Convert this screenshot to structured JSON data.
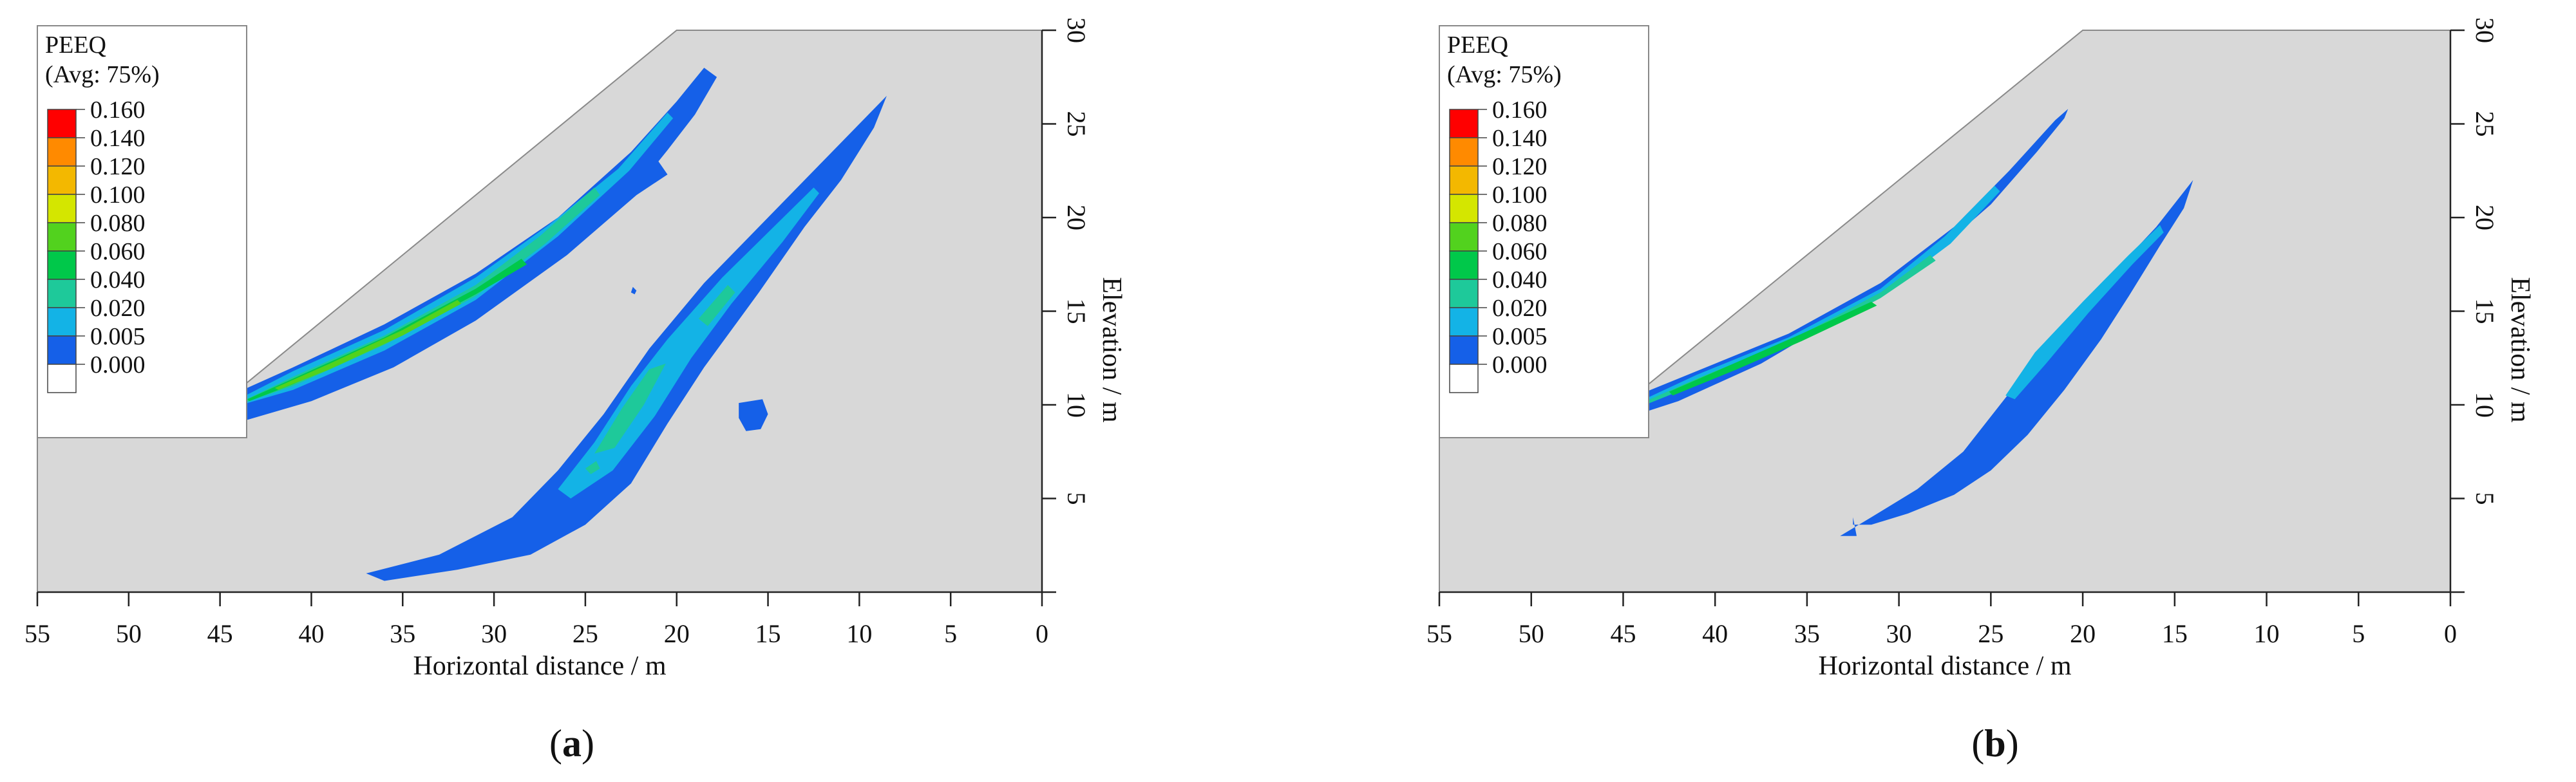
{
  "chart_data": [
    {
      "type": "heatmap",
      "panel_label": "(a)",
      "panel_letter": "a",
      "legend": {
        "title_line1": "PEEQ",
        "title_line2": "(Avg: 75%)",
        "levels": [
          0.16,
          0.14,
          0.12,
          0.1,
          0.08,
          0.06,
          0.04,
          0.02,
          0.005,
          0.0
        ],
        "level_labels": [
          "0.160",
          "0.140",
          "0.120",
          "0.100",
          "0.080",
          "0.060",
          "0.040",
          "0.020",
          "0.005",
          "0.000"
        ],
        "colors": [
          "#ff0000",
          "#ff8a00",
          "#f3b800",
          "#d4e600",
          "#52d21e",
          "#00c84a",
          "#1ec99a",
          "#13b3e6",
          "#1560e8",
          "#ffffff"
        ]
      },
      "xlabel": "Horizontal distance / m",
      "ylabel": "Elevation / m",
      "x_ticks": [
        "55",
        "50",
        "45",
        "40",
        "35",
        "30",
        "25",
        "20",
        "15",
        "10",
        "5",
        "0"
      ],
      "y_ticks": [
        "5",
        "10",
        "15",
        "20",
        "25",
        "30"
      ],
      "xlim": [
        55,
        0
      ],
      "ylim": [
        0,
        30
      ],
      "slope_outline": [
        [
          55,
          0
        ],
        [
          55,
          10
        ],
        [
          45,
          10
        ],
        [
          20,
          30
        ],
        [
          0,
          30
        ],
        [
          0,
          0
        ]
      ],
      "bands": [
        {
          "level": 0.005,
          "points": [
            [
              45.5,
              9.9
            ],
            [
              44.2,
              10.6
            ],
            [
              41,
              12.0
            ],
            [
              36,
              14.3
            ],
            [
              31,
              17.0
            ],
            [
              26.5,
              20.0
            ],
            [
              22.5,
              23.5
            ],
            [
              20,
              26.2
            ],
            [
              18.5,
              28
            ],
            [
              17.8,
              27.5
            ],
            [
              19.0,
              25.5
            ],
            [
              20.5,
              23.6
            ],
            [
              21.0,
              23.0
            ],
            [
              20.5,
              22.3
            ],
            [
              22.2,
              21.2
            ],
            [
              26,
              18.0
            ],
            [
              31,
              14.5
            ],
            [
              35.5,
              12.0
            ],
            [
              40,
              10.2
            ],
            [
              43.5,
              9.2
            ],
            [
              45,
              9.2
            ]
          ]
        },
        {
          "level": 0.02,
          "points": [
            [
              44.6,
              10.0
            ],
            [
              41,
              11.8
            ],
            [
              36,
              14.0
            ],
            [
              31,
              16.8
            ],
            [
              27,
              19.6
            ],
            [
              23.2,
              22.6
            ],
            [
              20.5,
              25.6
            ],
            [
              20.2,
              25.3
            ],
            [
              22.6,
              22.5
            ],
            [
              26.5,
              19.0
            ],
            [
              31,
              15.6
            ],
            [
              36,
              12.9
            ],
            [
              41,
              10.8
            ],
            [
              44.2,
              9.9
            ]
          ]
        },
        {
          "level": 0.04,
          "points": [
            [
              44.2,
              10.0
            ],
            [
              41,
              11.5
            ],
            [
              36,
              13.7
            ],
            [
              31,
              16.4
            ],
            [
              27.5,
              19.0
            ],
            [
              24.5,
              21.6
            ],
            [
              24.2,
              21.2
            ],
            [
              27.2,
              18.6
            ],
            [
              31,
              15.8
            ],
            [
              36,
              13.2
            ],
            [
              41,
              11.0
            ],
            [
              44.0,
              10.0
            ]
          ]
        },
        {
          "level": 0.06,
          "points": [
            [
              43.5,
              10.3
            ],
            [
              41,
              11.4
            ],
            [
              36,
              13.6
            ],
            [
              31,
              16.2
            ],
            [
              28.5,
              17.8
            ],
            [
              28.2,
              17.5
            ],
            [
              31,
              15.9
            ],
            [
              36,
              13.3
            ],
            [
              41,
              11.1
            ],
            [
              43.4,
              10.2
            ]
          ]
        },
        {
          "level": 0.08,
          "points": [
            [
              42.0,
              10.9
            ],
            [
              39,
              12.2
            ],
            [
              35,
              14.0
            ],
            [
              32,
              15.6
            ],
            [
              31.8,
              15.4
            ],
            [
              35,
              13.7
            ],
            [
              39,
              11.9
            ],
            [
              41.8,
              10.8
            ]
          ]
        },
        {
          "level": 0.005,
          "points": [
            [
              37,
              1.0
            ],
            [
              33,
              2.0
            ],
            [
              29,
              4.0
            ],
            [
              26.5,
              6.5
            ],
            [
              24,
              9.5
            ],
            [
              21.5,
              13.0
            ],
            [
              18.5,
              16.5
            ],
            [
              15,
              20.0
            ],
            [
              12,
              23.0
            ],
            [
              9.5,
              25.5
            ],
            [
              8.5,
              26.5
            ],
            [
              9.2,
              24.8
            ],
            [
              11.0,
              22.0
            ],
            [
              13.0,
              19.5
            ],
            [
              15.5,
              16.0
            ],
            [
              18.5,
              12.0
            ],
            [
              20.5,
              9.0
            ],
            [
              22.5,
              5.8
            ],
            [
              25.0,
              3.6
            ],
            [
              28.0,
              2.0
            ],
            [
              32,
              1.2
            ],
            [
              36,
              0.6
            ]
          ]
        },
        {
          "level": 0.02,
          "points": [
            [
              26.5,
              5.5
            ],
            [
              24.5,
              8.0
            ],
            [
              22.5,
              11.0
            ],
            [
              20.5,
              13.5
            ],
            [
              17.5,
              16.8
            ],
            [
              15.0,
              19.2
            ],
            [
              12.5,
              21.6
            ],
            [
              12.2,
              21.3
            ],
            [
              14.2,
              18.7
            ],
            [
              17.0,
              15.4
            ],
            [
              19.2,
              12.5
            ],
            [
              21.2,
              9.4
            ],
            [
              23.5,
              6.5
            ],
            [
              25.8,
              5.0
            ]
          ]
        },
        {
          "level": 0.04,
          "points": [
            [
              24.5,
              7.4
            ],
            [
              23.0,
              9.8
            ],
            [
              21.5,
              11.9
            ],
            [
              20.6,
              12.2
            ],
            [
              21.8,
              10.0
            ],
            [
              23.4,
              7.7
            ]
          ]
        },
        {
          "level": 0.04,
          "points": [
            [
              18.8,
              14.6
            ],
            [
              17.2,
              16.4
            ],
            [
              16.8,
              16.0
            ],
            [
              18.3,
              14.2
            ]
          ]
        },
        {
          "level": 0.04,
          "points": [
            [
              25.0,
              6.6
            ],
            [
              24.4,
              7.0
            ],
            [
              24.2,
              6.6
            ],
            [
              24.7,
              6.3
            ]
          ]
        },
        {
          "level": 0.005,
          "points": [
            [
              16.6,
              10.1
            ],
            [
              15.3,
              10.3
            ],
            [
              15.0,
              9.5
            ],
            [
              15.4,
              8.7
            ],
            [
              16.2,
              8.6
            ],
            [
              16.6,
              9.3
            ]
          ]
        },
        {
          "level": 0.005,
          "points": [
            [
              22.4,
              16.3
            ],
            [
              22.2,
              16.1
            ],
            [
              22.3,
              15.9
            ],
            [
              22.5,
              16.0
            ]
          ]
        }
      ]
    },
    {
      "type": "heatmap",
      "panel_label": "(b)",
      "panel_letter": "b",
      "legend": {
        "title_line1": "PEEQ",
        "title_line2": "(Avg: 75%)",
        "levels": [
          0.16,
          0.14,
          0.12,
          0.1,
          0.08,
          0.06,
          0.04,
          0.02,
          0.005,
          0.0
        ],
        "level_labels": [
          "0.160",
          "0.140",
          "0.120",
          "0.100",
          "0.080",
          "0.060",
          "0.040",
          "0.020",
          "0.005",
          "0.000"
        ],
        "colors": [
          "#ff0000",
          "#ff8a00",
          "#f3b800",
          "#d4e600",
          "#52d21e",
          "#00c84a",
          "#1ec99a",
          "#13b3e6",
          "#1560e8",
          "#ffffff"
        ]
      },
      "xlabel": "Horizontal distance / m",
      "ylabel": "Elevation / m",
      "x_ticks": [
        "55",
        "50",
        "45",
        "40",
        "35",
        "30",
        "25",
        "20",
        "15",
        "10",
        "5",
        "0"
      ],
      "y_ticks": [
        "5",
        "10",
        "15",
        "20",
        "25",
        "30"
      ],
      "xlim": [
        55,
        0
      ],
      "ylim": [
        0,
        30
      ],
      "slope_outline": [
        [
          55,
          0
        ],
        [
          55,
          10
        ],
        [
          45,
          10
        ],
        [
          20,
          30
        ],
        [
          0,
          30
        ],
        [
          0,
          0
        ]
      ],
      "bands": [
        {
          "level": 0.005,
          "points": [
            [
              45.5,
              10.0
            ],
            [
              44.0,
              10.6
            ],
            [
              41,
              11.8
            ],
            [
              36,
              13.8
            ],
            [
              31,
              16.5
            ],
            [
              27,
              19.5
            ],
            [
              24,
              22.5
            ],
            [
              21.5,
              25.2
            ],
            [
              20.8,
              25.8
            ],
            [
              21.0,
              25.3
            ],
            [
              22.5,
              23.5
            ],
            [
              25,
              20.7
            ],
            [
              28.5,
              17.7
            ],
            [
              33,
              14.8
            ],
            [
              37.5,
              12.2
            ],
            [
              42,
              10.2
            ],
            [
              44.5,
              9.4
            ]
          ]
        },
        {
          "level": 0.02,
          "points": [
            [
              44.5,
              10.0
            ],
            [
              41,
              11.6
            ],
            [
              36,
              13.6
            ],
            [
              31,
              16.2
            ],
            [
              27.5,
              19.0
            ],
            [
              24.8,
              21.7
            ],
            [
              24.5,
              21.4
            ],
            [
              27.2,
              18.6
            ],
            [
              31,
              15.8
            ],
            [
              36,
              13.2
            ],
            [
              41,
              11.2
            ],
            [
              44.2,
              10.0
            ]
          ]
        },
        {
          "level": 0.04,
          "points": [
            [
              44.0,
              10.1
            ],
            [
              41,
              11.4
            ],
            [
              36,
              13.4
            ],
            [
              31,
              16.0
            ],
            [
              28.3,
              18.0
            ],
            [
              28.0,
              17.7
            ],
            [
              31,
              15.7
            ],
            [
              36,
              13.1
            ],
            [
              41,
              11.1
            ],
            [
              43.8,
              10.0
            ]
          ]
        },
        {
          "level": 0.06,
          "points": [
            [
              42.5,
              10.7
            ],
            [
              39,
              12.2
            ],
            [
              35.5,
              13.7
            ],
            [
              31.5,
              15.5
            ],
            [
              31.2,
              15.3
            ],
            [
              35.3,
              13.4
            ],
            [
              38.8,
              11.9
            ],
            [
              42.3,
              10.5
            ]
          ]
        },
        {
          "level": 0.005,
          "points": [
            [
              33.2,
              3.0
            ],
            [
              31.5,
              4.0
            ],
            [
              29.0,
              5.5
            ],
            [
              26.5,
              7.5
            ],
            [
              24.5,
              10.0
            ],
            [
              22.5,
              12.5
            ],
            [
              20.5,
              14.8
            ],
            [
              18.2,
              17.2
            ],
            [
              16,
              19.5
            ],
            [
              14.0,
              22.0
            ],
            [
              14.5,
              20.5
            ],
            [
              15.8,
              18.5
            ],
            [
              17.5,
              15.8
            ],
            [
              19.0,
              13.5
            ],
            [
              21.0,
              10.8
            ],
            [
              23.0,
              8.4
            ],
            [
              25.0,
              6.5
            ],
            [
              27.0,
              5.2
            ],
            [
              29.5,
              4.2
            ],
            [
              31.5,
              3.6
            ],
            [
              32.5,
              3.6
            ],
            [
              32.5,
              4.0
            ],
            [
              32.3,
              3.0
            ]
          ]
        },
        {
          "level": 0.02,
          "points": [
            [
              24.2,
              10.5
            ],
            [
              22.6,
              12.8
            ],
            [
              20.0,
              15.5
            ],
            [
              17.5,
              18.0
            ],
            [
              15.8,
              19.6
            ],
            [
              15.6,
              19.2
            ],
            [
              17.3,
              17.5
            ],
            [
              19.7,
              14.9
            ],
            [
              22.0,
              12.2
            ],
            [
              23.7,
              10.3
            ]
          ]
        }
      ]
    }
  ]
}
